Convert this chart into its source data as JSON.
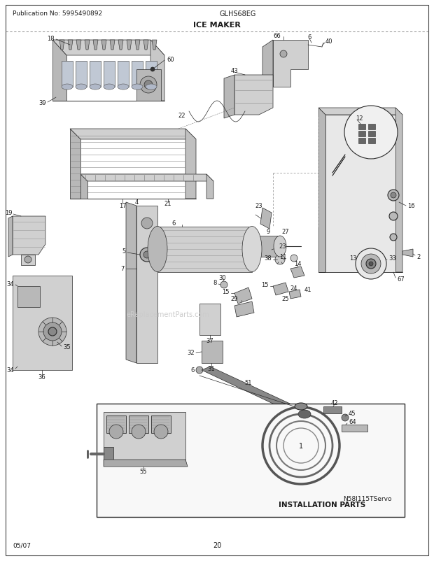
{
  "title": "ICE MAKER",
  "pub_no": "Publication No: 5995490892",
  "model": "GLHS68EG",
  "diagram_id": "N58I115TServo",
  "page": "20",
  "date": "05/07",
  "bg_color": "#ffffff",
  "text_color": "#1a1a1a",
  "line_color": "#2a2a2a",
  "gray1": "#d0d0d0",
  "gray2": "#b8b8b8",
  "gray3": "#888888",
  "fig_width": 6.2,
  "fig_height": 8.03,
  "dpi": 100
}
